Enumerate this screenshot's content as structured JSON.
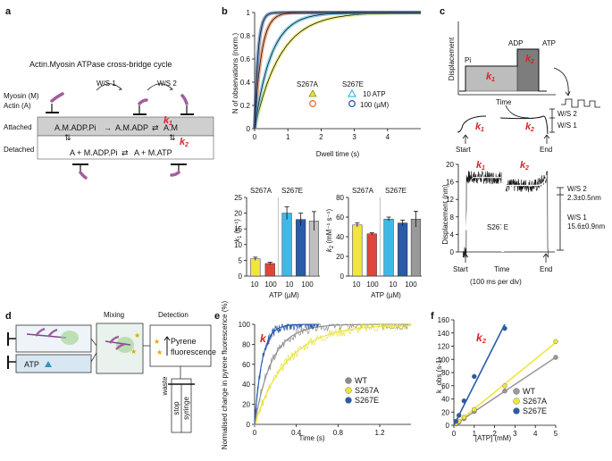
{
  "panels": {
    "a": {
      "letter": "a",
      "title": "Actin.Myosin ATPase cross-bridge cycle",
      "myosin_label": "Myosin (M)",
      "actin_label": "Actin (A)",
      "ws1": "W/S 1",
      "ws2": "W/S 2",
      "attached": "Attached",
      "detached": "Detached",
      "state_am_adp_pi": "A.M.ADP.Pi",
      "state_am_adp": "A.M.ADP",
      "state_am": "A.M",
      "state_a_madppi": "A + M.ADP.Pi",
      "state_a_matp": "A + M.ATP",
      "k1": "k",
      "k1_sub": "1",
      "k2": "k",
      "k2_sub": "2"
    },
    "b": {
      "letter": "b",
      "legend_s267a": "S267A",
      "legend_s267e": "S267E",
      "legend_10atp": "10  ATP",
      "legend_100um": "100  (µM)",
      "bar_label_a": "S267A",
      "bar_label_e": "S267E",
      "xlabel_ticks": [
        "10",
        "100",
        "10",
        "100"
      ],
      "atp_um": "ATP (µM)",
      "k1_ylabel": "k",
      "k1_ylabel_sub": "1",
      "k1_ylabel_unit": " (s⁻¹)",
      "k2_ylabel": "k",
      "k2_ylabel_sub": "2",
      "k2_ylabel_unit": " (mM⁻¹ s⁻¹)"
    },
    "c": {
      "letter": "c",
      "displacement": "Displacement",
      "time": "Time",
      "pi": "Pi",
      "adp": "ADP",
      "atp": "ATP",
      "start": "Start",
      "end": "End",
      "ws2": "W/S 2",
      "ws1": "W/S 1",
      "ws2_val": "2.3±0.5nm",
      "ws1_val": "15.6±0.9nm",
      "variant": "S267E",
      "time_div": "(100 ms per div)",
      "k1": "k",
      "k1_sub": "1",
      "k2": "k",
      "k2_sub": "2"
    },
    "d": {
      "letter": "d",
      "mixing": "Mixing",
      "detection": "Detection",
      "atp": "ATP",
      "pyrene1": "Pyrene",
      "pyrene2": "fluorescence",
      "waste": "waste",
      "stop": "stop",
      "syringe": "syringe"
    },
    "e": {
      "letter": "e",
      "k1": "k",
      "k1_sub": "1"
    },
    "f": {
      "letter": "f",
      "k2": "k",
      "k2_sub": "2"
    }
  },
  "colors": {
    "wt": "#8c8c8c",
    "s267a": "#e8e23a",
    "s267e": "#2a5ba8",
    "red": "#d92127",
    "cyan": "#3fb8e8",
    "orange": "#ef6d2d",
    "purple": "#a35d9e"
  },
  "chart_data": [
    {
      "id": "b-dwell",
      "type": "line",
      "xlabel": "Dwell time (s)",
      "ylabel": "N of observations (norm.)",
      "xlim": [
        0,
        5
      ],
      "ylim": [
        0,
        1
      ],
      "xticks": [
        0,
        1,
        2,
        3,
        4
      ],
      "yticks": [
        0,
        0.2,
        0.4,
        0.6,
        0.8,
        1
      ],
      "series": [
        {
          "name": "S267A 10 µM ATP",
          "color": "#e8e23a",
          "marker": "triangle",
          "rate": 1.3
        },
        {
          "name": "S267A 100 µM ATP",
          "color": "#ef6d2d",
          "marker": "circle",
          "rate": 5.0
        },
        {
          "name": "S267E 10 µM ATP",
          "color": "#3fb8e8",
          "marker": "triangle",
          "rate": 2.0
        },
        {
          "name": "S267E 100 µM ATP",
          "color": "#2a5ba8",
          "marker": "circle",
          "rate": 10.0
        }
      ]
    },
    {
      "id": "b-k1",
      "type": "bar",
      "ylim": [
        0,
        25
      ],
      "yticks": [
        0,
        5,
        10,
        15,
        20,
        25
      ],
      "categories": [
        "S267A 10",
        "S267A 100",
        "S267E 10",
        "S267E 100",
        "S267E 100 (grey)"
      ],
      "values": [
        5.5,
        4.0,
        20.0,
        18.0,
        17.5
      ],
      "errors": [
        0.5,
        0.4,
        2.0,
        2.0,
        3.0
      ],
      "colors": [
        "#f0e63c",
        "#e0453a",
        "#3fb8e8",
        "#2a5ba8",
        "#c0c0c0"
      ]
    },
    {
      "id": "b-k2",
      "type": "bar",
      "ylim": [
        0,
        80
      ],
      "yticks": [
        0,
        20,
        40,
        60,
        80
      ],
      "categories": [
        "S267A 10",
        "S267A 100",
        "S267E 10",
        "S267E 100",
        "S267E 100 (grey)"
      ],
      "values": [
        52,
        43,
        58,
        54,
        58
      ],
      "errors": [
        2,
        1,
        2,
        3,
        8
      ],
      "colors": [
        "#f0e63c",
        "#e0453a",
        "#3fb8e8",
        "#2a5ba8",
        "#999999"
      ]
    },
    {
      "id": "c-trace",
      "type": "line",
      "ylabel": "Displacement (nm)",
      "xlabel": "Time",
      "ylim": [
        0,
        20
      ],
      "yticks": [
        0,
        4,
        8,
        12,
        16,
        20
      ],
      "series": [
        {
          "name": "k1 window",
          "level": 17.0
        },
        {
          "name": "k2 window",
          "level": 15.2
        }
      ]
    },
    {
      "id": "e-stopped-flow",
      "type": "line",
      "xlabel": "Time (s)",
      "ylabel": "Normalised change in pyrene fluorescence (%)",
      "xlim": [
        0,
        1.5
      ],
      "ylim": [
        0,
        100
      ],
      "xticks": [
        0,
        0.4,
        0.8,
        1.2
      ],
      "yticks": [
        0,
        20,
        40,
        60,
        80,
        100
      ],
      "series": [
        {
          "name": "WT",
          "color": "#8c8c8c",
          "rate": 6.0,
          "xmax": 1.5
        },
        {
          "name": "S267A",
          "color": "#e8e23a",
          "rate": 3.2,
          "xmax": 1.5
        },
        {
          "name": "S267E",
          "color": "#2a5ba8",
          "rate": 14.0,
          "xmax": 0.62
        }
      ]
    },
    {
      "id": "f-kobs",
      "type": "scatter",
      "xlabel": "[ATP] (mM)",
      "ylabel": "k_obs (s-1)",
      "xlim": [
        0,
        5
      ],
      "ylim": [
        0,
        160
      ],
      "xticks": [
        0,
        1,
        2,
        3,
        4,
        5
      ],
      "yticks": [
        0,
        20,
        40,
        60,
        80,
        100,
        120,
        140,
        160
      ],
      "series": [
        {
          "name": "WT",
          "color": "#9a9a9a",
          "x": [
            0.1,
            0.25,
            0.5,
            1,
            2.5,
            5
          ],
          "y": [
            2,
            5,
            10,
            21,
            52,
            103
          ]
        },
        {
          "name": "S267A",
          "color": "#f0e63c",
          "x": [
            0.1,
            0.25,
            0.5,
            1,
            2.5,
            5
          ],
          "y": [
            3,
            6,
            12,
            24,
            60,
            127
          ]
        },
        {
          "name": "S267E",
          "color": "#2a5ba8",
          "x": [
            0.1,
            0.25,
            0.5,
            1,
            2.5
          ],
          "y": [
            6,
            15,
            37,
            74,
            147
          ]
        }
      ]
    }
  ]
}
